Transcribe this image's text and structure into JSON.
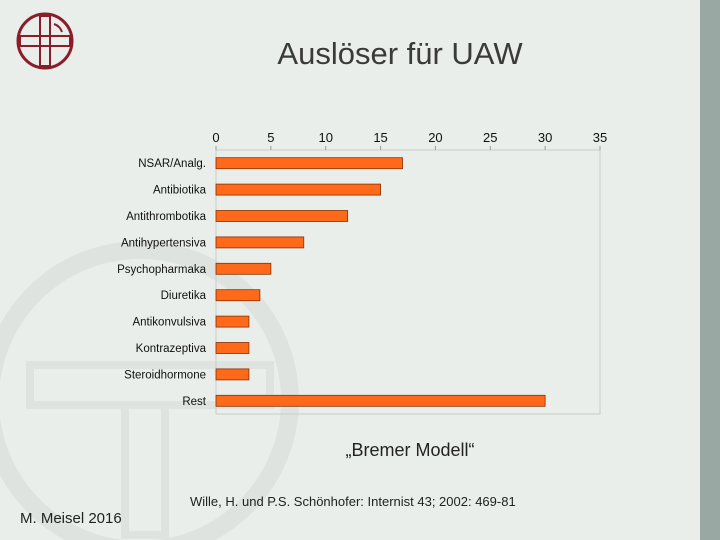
{
  "slide": {
    "title": "Auslöser für UAW",
    "caption": "„Bremer Modell“",
    "citation": "Wille, H. und P.S. Schönhofer: Internist 43; 2002: 469-81",
    "author": "M. Meisel 2016",
    "logo_icon": "diakonie-cross-logo-icon",
    "watermark_icon": "diakonie-watermark-icon"
  },
  "colors": {
    "bar_fill": "#ff6a1a",
    "bar_stroke": "#8a3000",
    "background": "#e9eeea",
    "accent_strip": "#9aa8a4"
  },
  "chart_data": {
    "type": "bar",
    "orientation": "horizontal",
    "categories": [
      "NSAR/Analg.",
      "Antibiotika",
      "Antithrombotika",
      "Antihypertensiva",
      "Psychopharmaka",
      "Diuretika",
      "Antikonvulsiva",
      "Kontrazeptiva",
      "Steroidhormone",
      "Rest"
    ],
    "values": [
      17,
      15,
      12,
      8,
      5,
      4,
      3,
      3,
      3,
      30
    ],
    "xlim": [
      0,
      35
    ],
    "xticks": [
      0,
      5,
      10,
      15,
      20,
      25,
      30,
      35
    ],
    "axis_position": "top",
    "grid": false,
    "legend": "none"
  }
}
